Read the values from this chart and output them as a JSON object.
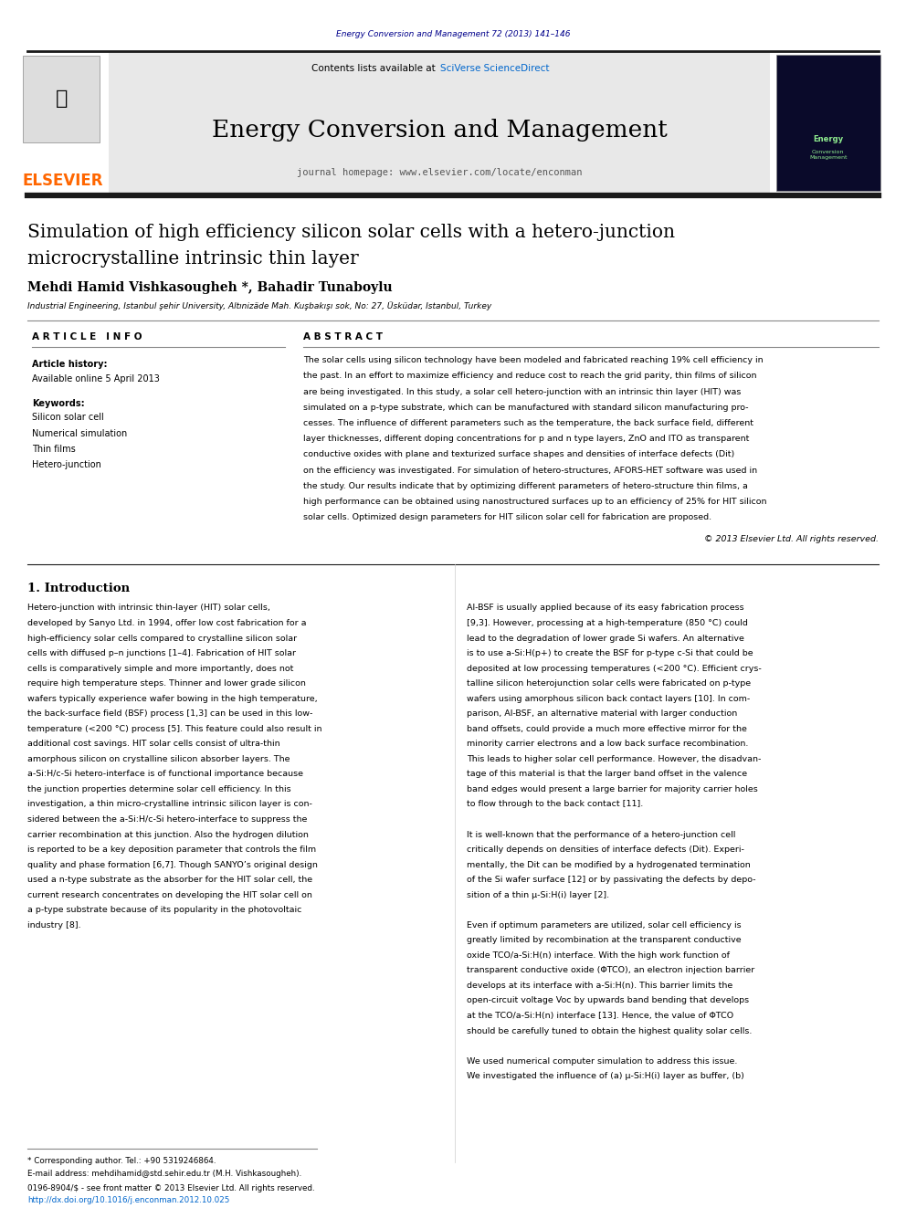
{
  "page_width": 9.92,
  "page_height": 13.23,
  "bg_color": "#ffffff",
  "header_citation": "Energy Conversion and Management 72 (2013) 141–146",
  "header_citation_color": "#00008B",
  "journal_name": "Energy Conversion and Management",
  "journal_homepage": "journal homepage: www.elsevier.com/locate/enconman",
  "contents_line": "Contents lists available at SciVerse ScienceDirect",
  "elsevier_color": "#FF6600",
  "paper_title_line1": "Simulation of high efficiency silicon solar cells with a hetero-junction",
  "paper_title_line2": "microcrystalline intrinsic thin layer",
  "authors": "Mehdi Hamid Vishkasougheh *, Bahadir Tunaboylu",
  "affiliation": "Industrial Engineering, Istanbul şehir University, Altınizäde Mah. Kuşbakışı sok, No: 27, Üsküdar, Istanbul, Turkey",
  "article_info_header": "A R T I C L E   I N F O",
  "abstract_header": "A B S T R A C T",
  "article_history": "Article history:",
  "available_online": "Available online 5 April 2013",
  "keywords_header": "Keywords:",
  "keywords": [
    "Silicon solar cell",
    "Numerical simulation",
    "Thin films",
    "Hetero-junction"
  ],
  "copyright": "© 2013 Elsevier Ltd. All rights reserved.",
  "section1_header": "1. Introduction",
  "footnote_corresponding": "* Corresponding author. Tel.: +90 5319246864.",
  "footnote_email": "E-mail address: mehdihamid@std.sehir.edu.tr (M.H. Vishkasougheh).",
  "footnote_issn": "0196-8904/$ - see front matter © 2013 Elsevier Ltd. All rights reserved.",
  "footnote_doi": "http://dx.doi.org/10.1016/j.enconman.2012.10.025",
  "header_bg": "#e8e8e8",
  "thick_rule_color": "#1a1a1a",
  "thin_rule_color": "#888888",
  "abstract_lines": [
    "The solar cells using silicon technology have been modeled and fabricated reaching 19% cell efficiency in",
    "the past. In an effort to maximize efficiency and reduce cost to reach the grid parity, thin films of silicon",
    "are being investigated. In this study, a solar cell hetero-junction with an intrinsic thin layer (HIT) was",
    "simulated on a p-type substrate, which can be manufactured with standard silicon manufacturing pro-",
    "cesses. The influence of different parameters such as the temperature, the back surface field, different",
    "layer thicknesses, different doping concentrations for p and n type layers, ZnO and ITO as transparent",
    "conductive oxides with plane and texturized surface shapes and densities of interface defects (Dit)",
    "on the efficiency was investigated. For simulation of hetero-structures, AFORS-HET software was used in",
    "the study. Our results indicate that by optimizing different parameters of hetero-structure thin films, a",
    "high performance can be obtained using nanostructured surfaces up to an efficiency of 25% for HIT silicon",
    "solar cells. Optimized design parameters for HIT silicon solar cell for fabrication are proposed."
  ],
  "intro_left_lines": [
    "Hetero-junction with intrinsic thin-layer (HIT) solar cells,",
    "developed by Sanyo Ltd. in 1994, offer low cost fabrication for a",
    "high-efficiency solar cells compared to crystalline silicon solar",
    "cells with diffused p–n junctions [1–4]. Fabrication of HIT solar",
    "cells is comparatively simple and more importantly, does not",
    "require high temperature steps. Thinner and lower grade silicon",
    "wafers typically experience wafer bowing in the high temperature,",
    "the back-surface field (BSF) process [1,3] can be used in this low-",
    "temperature (<200 °C) process [5]. This feature could also result in",
    "additional cost savings. HIT solar cells consist of ultra-thin",
    "amorphous silicon on crystalline silicon absorber layers. The",
    "a-Si:H/c-Si hetero-interface is of functional importance because",
    "the junction properties determine solar cell efficiency. In this",
    "investigation, a thin micro-crystalline intrinsic silicon layer is con-",
    "sidered between the a-Si:H/c-Si hetero-interface to suppress the",
    "carrier recombination at this junction. Also the hydrogen dilution",
    "is reported to be a key deposition parameter that controls the film",
    "quality and phase formation [6,7]. Though SANYO’s original design",
    "used a n-type substrate as the absorber for the HIT solar cell, the",
    "current research concentrates on developing the HIT solar cell on",
    "a p-type substrate because of its popularity in the photovoltaic",
    "industry [8]."
  ],
  "intro_right_lines": [
    "Al-BSF is usually applied because of its easy fabrication process",
    "[9,3]. However, processing at a high-temperature (850 °C) could",
    "lead to the degradation of lower grade Si wafers. An alternative",
    "is to use a-Si:H(p+) to create the BSF for p-type c-Si that could be",
    "deposited at low processing temperatures (<200 °C). Efficient crys-",
    "talline silicon heterojunction solar cells were fabricated on p-type",
    "wafers using amorphous silicon back contact layers [10]. In com-",
    "parison, Al-BSF, an alternative material with larger conduction",
    "band offsets, could provide a much more effective mirror for the",
    "minority carrier electrons and a low back surface recombination.",
    "This leads to higher solar cell performance. However, the disadvan-",
    "tage of this material is that the larger band offset in the valence",
    "band edges would present a large barrier for majority carrier holes",
    "to flow through to the back contact [11].",
    "",
    "It is well-known that the performance of a hetero-junction cell",
    "critically depends on densities of interface defects (Dit). Experi-",
    "mentally, the Dit can be modified by a hydrogenated termination",
    "of the Si wafer surface [12] or by passivating the defects by depo-",
    "sition of a thin μ-Si:H(i) layer [2].",
    "",
    "Even if optimum parameters are utilized, solar cell efficiency is",
    "greatly limited by recombination at the transparent conductive",
    "oxide TCO/a-Si:H(n) interface. With the high work function of",
    "transparent conductive oxide (ΦTCO), an electron injection barrier",
    "develops at its interface with a-Si:H(n). This barrier limits the",
    "open-circuit voltage Voc by upwards band bending that develops",
    "at the TCO/a-Si:H(n) interface [13]. Hence, the value of ΦTCO",
    "should be carefully tuned to obtain the highest quality solar cells.",
    "",
    "We used numerical computer simulation to address this issue.",
    "We investigated the influence of (a) μ-Si:H(i) layer as buffer, (b)"
  ]
}
